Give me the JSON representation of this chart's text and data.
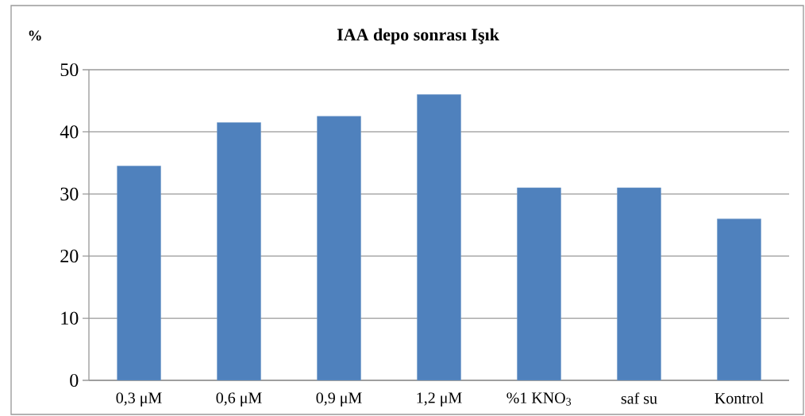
{
  "chart_data": {
    "type": "bar",
    "title": "IAA depo sonrası Işık",
    "ylabel": "%",
    "categories": [
      "0,3 μM",
      "0,6 μM",
      "0,9 μM",
      "1,2 μM",
      "%1 KNO$_{3}$",
      "saf su",
      "Kontrol"
    ],
    "values": [
      34.5,
      41.5,
      42.5,
      46,
      31,
      31,
      26
    ],
    "color": "#4f81bd",
    "ylim": [
      0,
      50
    ],
    "yticks": [
      0,
      10,
      20,
      30,
      40,
      50
    ],
    "grid": "y"
  }
}
